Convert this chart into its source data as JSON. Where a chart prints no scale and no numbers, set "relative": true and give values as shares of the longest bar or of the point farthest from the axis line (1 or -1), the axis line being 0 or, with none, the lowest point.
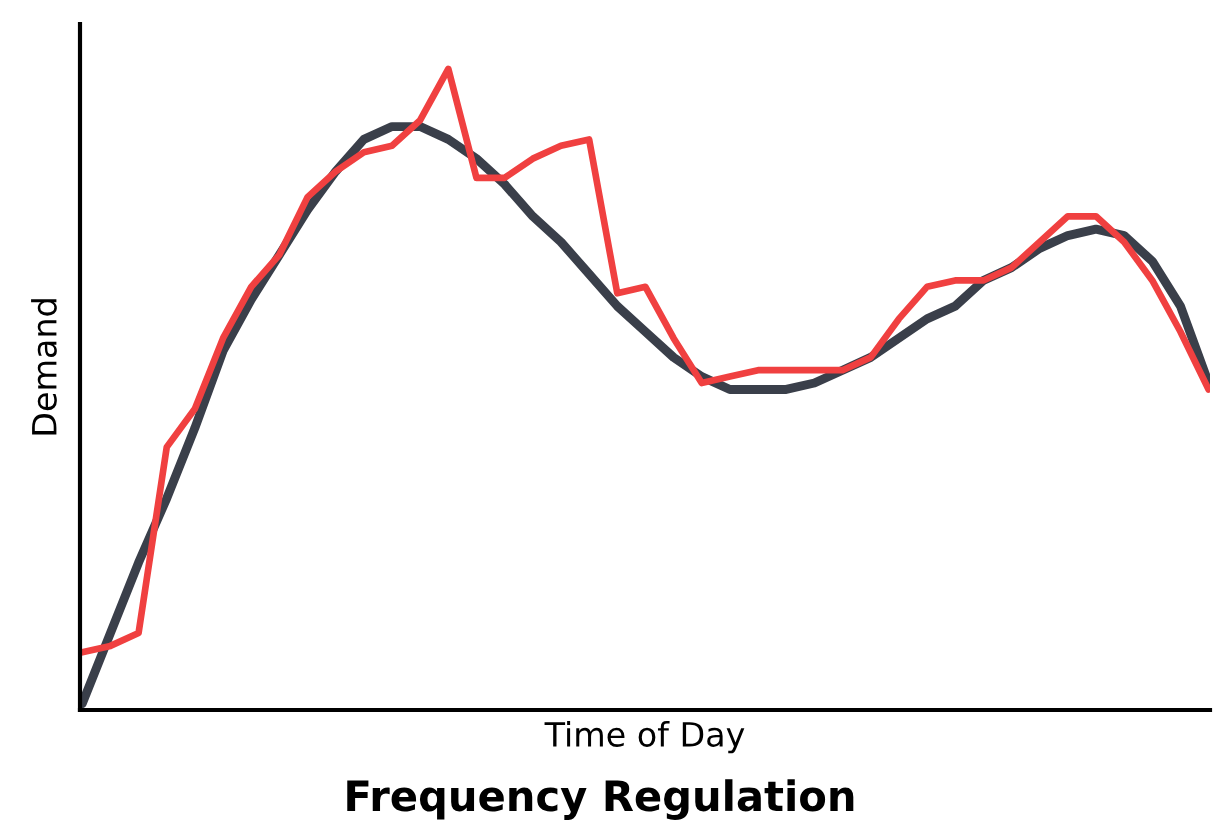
{
  "chart_data": {
    "type": "line",
    "title": "Frequency Regulation",
    "xlabel": "Time of Day",
    "ylabel": "Demand",
    "relative": true,
    "tick_labels": false,
    "grid": false,
    "legend": false,
    "marker": "none",
    "line_style": "solid",
    "categories": [
      null,
      null,
      null,
      null,
      null,
      null,
      null,
      null,
      null,
      null,
      null,
      null,
      null,
      null,
      null,
      null,
      null,
      null,
      null,
      null,
      null,
      null,
      null,
      null,
      null,
      null,
      null,
      null,
      null,
      null,
      null,
      null,
      null,
      null,
      null,
      null,
      null,
      null,
      null,
      null,
      null
    ],
    "series": [
      {
        "color": "#3a3f4a",
        "values": [
          0.01,
          0.12,
          0.23,
          0.33,
          0.44,
          0.56,
          0.64,
          0.71,
          0.78,
          0.84,
          0.89,
          0.91,
          0.91,
          0.89,
          0.86,
          0.82,
          0.77,
          0.73,
          0.68,
          0.63,
          0.59,
          0.55,
          0.52,
          0.5,
          0.5,
          0.5,
          0.51,
          0.53,
          0.55,
          0.58,
          0.61,
          0.63,
          0.67,
          0.69,
          0.72,
          0.74,
          0.75,
          0.74,
          0.7,
          0.63,
          0.51
        ]
      },
      {
        "color": "#f04040",
        "values": [
          0.09,
          0.1,
          0.12,
          0.41,
          0.47,
          0.58,
          0.66,
          0.71,
          0.8,
          0.84,
          0.87,
          0.88,
          0.92,
          1.0,
          0.83,
          0.83,
          0.86,
          0.88,
          0.89,
          0.65,
          0.66,
          0.58,
          0.51,
          0.52,
          0.53,
          0.53,
          0.53,
          0.53,
          0.55,
          0.61,
          0.66,
          0.67,
          0.67,
          0.69,
          0.73,
          0.77,
          0.77,
          0.73,
          0.67,
          0.59,
          0.5
        ]
      }
    ]
  }
}
